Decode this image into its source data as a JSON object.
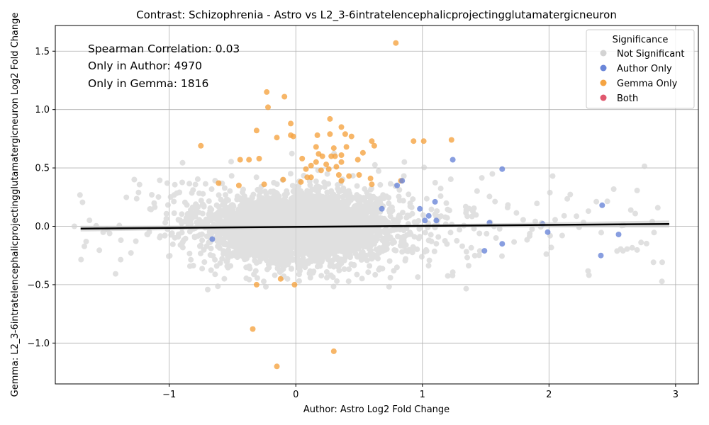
{
  "chart_data": {
    "type": "scatter",
    "title": "Contrast: Schizophrenia - Astro vs L2_3-6intratelencephalicprojectingglutamatergicneuron",
    "xlabel": "Author: Astro Log2 Fold Change",
    "ylabel": "Gemma: L2_3-6intratelencephalicprojectingglutamatergicneuron Log2 Fold Change",
    "xlim": [
      -1.9,
      3.18
    ],
    "ylim": [
      -1.35,
      1.72
    ],
    "x_ticks": [
      -1,
      0,
      1,
      2,
      3
    ],
    "x_tick_labels": [
      "−1",
      "0",
      "1",
      "2",
      "3"
    ],
    "y_ticks": [
      -1.0,
      -0.5,
      0.0,
      0.5,
      1.0,
      1.5
    ],
    "y_tick_labels": [
      "−1.0",
      "−0.5",
      "0.0",
      "0.5",
      "1.0",
      "1.5"
    ],
    "grid": true,
    "annotations": [
      "Spearman Correlation: 0.03",
      "Only in Author: 4970",
      "Only in Gemma: 1816"
    ],
    "legend": {
      "title": "Significance",
      "placement": "top-right",
      "entries": [
        {
          "label": "Not Significant",
          "color": "#d3d3d3"
        },
        {
          "label": "Author Only",
          "color": "#6a86d8"
        },
        {
          "label": "Gemma Only",
          "color": "#f5a442"
        },
        {
          "label": "Both",
          "color": "#e0586e"
        }
      ]
    },
    "regression_line": {
      "x": [
        -1.7,
        2.95
      ],
      "y": [
        -0.02,
        0.02
      ],
      "color": "#000000"
    },
    "series": [
      {
        "name": "Gemma Only",
        "color": "#f5a442",
        "points": [
          [
            0.79,
            1.57
          ],
          [
            -0.23,
            1.15
          ],
          [
            -0.09,
            1.11
          ],
          [
            -0.22,
            1.02
          ],
          [
            0.27,
            0.92
          ],
          [
            -0.04,
            0.88
          ],
          [
            0.36,
            0.85
          ],
          [
            -0.31,
            0.82
          ],
          [
            0.39,
            0.79
          ],
          [
            0.27,
            0.79
          ],
          [
            -0.04,
            0.78
          ],
          [
            -0.15,
            0.76
          ],
          [
            0.44,
            0.77
          ],
          [
            -0.02,
            0.77
          ],
          [
            0.17,
            0.78
          ],
          [
            0.6,
            0.73
          ],
          [
            1.23,
            0.74
          ],
          [
            0.93,
            0.73
          ],
          [
            1.01,
            0.73
          ],
          [
            -0.75,
            0.69
          ],
          [
            0.62,
            0.69
          ],
          [
            0.16,
            0.68
          ],
          [
            0.4,
            0.68
          ],
          [
            0.3,
            0.67
          ],
          [
            0.53,
            0.63
          ],
          [
            0.18,
            0.62
          ],
          [
            0.36,
            0.61
          ],
          [
            0.21,
            0.6
          ],
          [
            0.31,
            0.6
          ],
          [
            0.28,
            0.6
          ],
          [
            0.05,
            0.58
          ],
          [
            -0.29,
            0.58
          ],
          [
            0.49,
            0.57
          ],
          [
            -0.44,
            0.57
          ],
          [
            -0.37,
            0.57
          ],
          [
            0.16,
            0.55
          ],
          [
            0.24,
            0.53
          ],
          [
            0.36,
            0.55
          ],
          [
            0.12,
            0.52
          ],
          [
            0.32,
            0.51
          ],
          [
            0.08,
            0.49
          ],
          [
            0.2,
            0.48
          ],
          [
            0.26,
            0.49
          ],
          [
            0.5,
            0.44
          ],
          [
            0.34,
            0.44
          ],
          [
            0.42,
            0.43
          ],
          [
            0.59,
            0.41
          ],
          [
            0.12,
            0.42
          ],
          [
            0.09,
            0.42
          ],
          [
            0.36,
            0.39
          ],
          [
            0.83,
            0.39
          ],
          [
            -0.61,
            0.37
          ],
          [
            -0.25,
            0.36
          ],
          [
            0.04,
            0.38
          ],
          [
            -0.1,
            0.4
          ],
          [
            0.6,
            0.36
          ],
          [
            -0.45,
            0.35
          ],
          [
            -0.12,
            -0.45
          ],
          [
            -0.31,
            -0.5
          ],
          [
            -0.01,
            -0.5
          ],
          [
            -0.34,
            -0.88
          ],
          [
            0.3,
            -1.07
          ],
          [
            -0.15,
            -1.2
          ]
        ]
      },
      {
        "name": "Author Only",
        "color": "#6a86d8",
        "points": [
          [
            1.24,
            0.57
          ],
          [
            1.63,
            0.49
          ],
          [
            0.84,
            0.39
          ],
          [
            0.8,
            0.35
          ],
          [
            1.1,
            0.21
          ],
          [
            2.42,
            0.18
          ],
          [
            0.98,
            0.15
          ],
          [
            0.68,
            0.15
          ],
          [
            1.05,
            0.09
          ],
          [
            1.02,
            0.05
          ],
          [
            1.11,
            0.05
          ],
          [
            1.53,
            0.03
          ],
          [
            1.95,
            0.02
          ],
          [
            1.99,
            -0.05
          ],
          [
            2.55,
            -0.07
          ],
          [
            -0.66,
            -0.11
          ],
          [
            1.63,
            -0.15
          ],
          [
            1.49,
            -0.21
          ],
          [
            2.41,
            -0.25
          ]
        ]
      },
      {
        "name": "Both",
        "color": "#e0586e",
        "points": []
      }
    ]
  }
}
